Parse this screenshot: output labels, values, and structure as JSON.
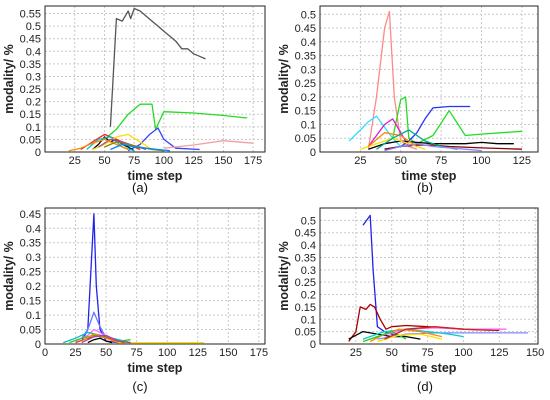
{
  "chart_data": [
    {
      "type": "line",
      "caption": "(a)",
      "xlabel": "time step",
      "ylabel": "modality/ %",
      "xlim": [
        0,
        185
      ],
      "ylim": [
        0,
        0.58
      ],
      "xticks": [
        25,
        50,
        75,
        100,
        125,
        150,
        175
      ],
      "yticks": [
        0,
        0.05,
        0.1,
        0.15,
        0.2,
        0.25,
        0.3,
        0.35,
        0.4,
        0.45,
        0.5,
        0.55
      ],
      "grid": true,
      "series": [
        {
          "color": "#555555",
          "x": [
            55,
            60,
            65,
            70,
            72,
            75,
            80,
            85,
            90,
            95,
            100,
            105,
            110,
            115,
            120,
            125,
            130,
            135
          ],
          "y": [
            0.1,
            0.53,
            0.52,
            0.56,
            0.53,
            0.57,
            0.56,
            0.54,
            0.52,
            0.5,
            0.48,
            0.46,
            0.44,
            0.41,
            0.41,
            0.39,
            0.38,
            0.37
          ]
        },
        {
          "color": "#22dd22",
          "x": [
            50,
            60,
            70,
            80,
            85,
            90,
            93,
            100,
            125,
            150,
            170
          ],
          "y": [
            0.05,
            0.09,
            0.15,
            0.19,
            0.19,
            0.19,
            0.09,
            0.16,
            0.155,
            0.145,
            0.135
          ]
        },
        {
          "color": "#3344ff",
          "x": [
            70,
            80,
            88,
            95,
            100,
            110,
            130
          ],
          "y": [
            0.005,
            0.03,
            0.07,
            0.095,
            0.05,
            0.015,
            0.01
          ]
        },
        {
          "color": "#f4a0a0",
          "x": [
            100,
            125,
            150,
            175
          ],
          "y": [
            0.015,
            0.028,
            0.045,
            0.035
          ]
        },
        {
          "color": "#000000",
          "x": [
            40,
            45,
            50,
            55,
            60,
            65,
            70,
            75
          ],
          "y": [
            0.01,
            0.03,
            0.06,
            0.04,
            0.05,
            0.03,
            0.02,
            0.005
          ]
        },
        {
          "color": "#ff2222",
          "x": [
            30,
            40,
            50,
            60,
            70,
            80
          ],
          "y": [
            0.01,
            0.04,
            0.07,
            0.05,
            0.03,
            0.01
          ]
        },
        {
          "color": "#ffdd00",
          "x": [
            40,
            50,
            60,
            70,
            80,
            90
          ],
          "y": [
            0.01,
            0.03,
            0.06,
            0.07,
            0.04,
            0.01
          ]
        },
        {
          "color": "#00cccc",
          "x": [
            35,
            45,
            55,
            65,
            75
          ],
          "y": [
            0.01,
            0.05,
            0.06,
            0.02,
            0.005
          ]
        },
        {
          "color": "#aa44aa",
          "x": [
            45,
            55,
            65,
            75,
            85
          ],
          "y": [
            0.02,
            0.05,
            0.04,
            0.025,
            0.01
          ]
        },
        {
          "color": "#ff8800",
          "x": [
            20,
            30,
            40,
            50,
            60,
            70
          ],
          "y": [
            0.005,
            0.015,
            0.035,
            0.05,
            0.03,
            0.01
          ]
        },
        {
          "color": "#888800",
          "x": [
            50,
            60,
            70,
            80,
            90,
            100
          ],
          "y": [
            0.02,
            0.04,
            0.03,
            0.02,
            0.01,
            0.005
          ]
        },
        {
          "color": "#0088ff",
          "x": [
            55,
            65,
            75,
            85,
            95,
            105
          ],
          "y": [
            0.01,
            0.03,
            0.02,
            0.015,
            0.01,
            0.005
          ]
        }
      ]
    },
    {
      "type": "line",
      "caption": "(b)",
      "xlabel": "time step",
      "ylabel": "modality/ %",
      "xlim": [
        0,
        135
      ],
      "ylim": [
        0,
        0.53
      ],
      "xticks": [
        25,
        50,
        75,
        100,
        125
      ],
      "yticks": [
        0,
        0.05,
        0.1,
        0.15,
        0.2,
        0.25,
        0.3,
        0.35,
        0.4,
        0.45,
        0.5
      ],
      "grid": true,
      "series": [
        {
          "color": "#ff8888",
          "x": [
            30,
            35,
            40,
            43,
            46,
            50,
            55,
            60
          ],
          "y": [
            0.01,
            0.2,
            0.45,
            0.51,
            0.2,
            0.04,
            0.02,
            0.01
          ]
        },
        {
          "color": "#22dd22",
          "x": [
            45,
            50,
            53,
            55,
            60,
            70,
            80,
            90,
            100,
            125
          ],
          "y": [
            0.05,
            0.19,
            0.2,
            0.05,
            0.03,
            0.06,
            0.15,
            0.06,
            0.065,
            0.075
          ]
        },
        {
          "color": "#2233ff",
          "x": [
            40,
            50,
            55,
            60,
            65,
            70,
            80,
            93
          ],
          "y": [
            0.01,
            0.02,
            0.04,
            0.07,
            0.12,
            0.16,
            0.165,
            0.165
          ]
        },
        {
          "color": "#33ddff",
          "x": [
            18,
            25,
            30,
            35,
            40,
            45,
            50
          ],
          "y": [
            0.04,
            0.08,
            0.11,
            0.13,
            0.09,
            0.05,
            0.02
          ]
        },
        {
          "color": "#cc22cc",
          "x": [
            30,
            35,
            40,
            45,
            50,
            55
          ],
          "y": [
            0.02,
            0.06,
            0.1,
            0.12,
            0.07,
            0.02
          ]
        },
        {
          "color": "#000000",
          "x": [
            30,
            40,
            50,
            60,
            70,
            80,
            90,
            100,
            110,
            120
          ],
          "y": [
            0.01,
            0.03,
            0.04,
            0.035,
            0.03,
            0.03,
            0.03,
            0.035,
            0.03,
            0.03
          ]
        },
        {
          "color": "#8b0000",
          "x": [
            40,
            50,
            60,
            70,
            80,
            100,
            125
          ],
          "y": [
            0.01,
            0.02,
            0.025,
            0.025,
            0.02,
            0.015,
            0.01
          ]
        },
        {
          "color": "#ffdd00",
          "x": [
            25,
            35,
            45,
            55,
            65
          ],
          "y": [
            0.01,
            0.03,
            0.05,
            0.03,
            0.01
          ]
        },
        {
          "color": "#ff8800",
          "x": [
            30,
            40,
            50,
            60
          ],
          "y": [
            0.02,
            0.07,
            0.06,
            0.02
          ]
        },
        {
          "color": "#00aa88",
          "x": [
            35,
            45,
            55,
            65,
            75,
            85
          ],
          "y": [
            0.01,
            0.05,
            0.08,
            0.04,
            0.02,
            0.01
          ]
        },
        {
          "color": "#8888ff",
          "x": [
            40,
            50,
            60,
            70,
            80,
            90,
            100
          ],
          "y": [
            0.005,
            0.02,
            0.03,
            0.02,
            0.015,
            0.01,
            0.005
          ]
        }
      ]
    },
    {
      "type": "line",
      "caption": "(c)",
      "xlabel": "time step",
      "ylabel": "modality/ %",
      "xlim": [
        0,
        180
      ],
      "ylim": [
        0,
        0.47
      ],
      "xticks": [
        0,
        25,
        50,
        75,
        100,
        125,
        150,
        175
      ],
      "yticks": [
        0,
        0.05,
        0.1,
        0.15,
        0.2,
        0.25,
        0.3,
        0.35,
        0.4,
        0.45
      ],
      "grid": true,
      "series": [
        {
          "color": "#2222ee",
          "x": [
            30,
            35,
            40,
            42,
            45,
            50,
            60
          ],
          "y": [
            0.01,
            0.05,
            0.45,
            0.2,
            0.05,
            0.01,
            0.005
          ]
        },
        {
          "color": "#6677ff",
          "x": [
            30,
            35,
            40,
            45,
            50
          ],
          "y": [
            0.02,
            0.05,
            0.11,
            0.06,
            0.02
          ]
        },
        {
          "color": "#ff66ff",
          "x": [
            25,
            35,
            40,
            45,
            55
          ],
          "y": [
            0.01,
            0.03,
            0.05,
            0.04,
            0.01
          ]
        },
        {
          "color": "#00bbbb",
          "x": [
            15,
            25,
            35,
            45,
            55,
            70
          ],
          "y": [
            0.005,
            0.02,
            0.04,
            0.03,
            0.02,
            0.005
          ]
        },
        {
          "color": "#22cc22",
          "x": [
            20,
            30,
            40,
            50,
            60,
            70
          ],
          "y": [
            0.005,
            0.02,
            0.03,
            0.02,
            0.01,
            0.015
          ]
        },
        {
          "color": "#ffdd00",
          "x": [
            60,
            80,
            100,
            120,
            130
          ],
          "y": [
            0.005,
            0.005,
            0.005,
            0.005,
            0.005
          ]
        },
        {
          "color": "#ff2222",
          "x": [
            25,
            35,
            45,
            55,
            65
          ],
          "y": [
            0.005,
            0.02,
            0.03,
            0.015,
            0.005
          ]
        },
        {
          "color": "#ff8800",
          "x": [
            30,
            40,
            50,
            60
          ],
          "y": [
            0.01,
            0.035,
            0.02,
            0.005
          ]
        },
        {
          "color": "#000000",
          "x": [
            35,
            40,
            45,
            50,
            55
          ],
          "y": [
            0.005,
            0.015,
            0.02,
            0.01,
            0.005
          ]
        },
        {
          "color": "#aa44aa",
          "x": [
            30,
            40,
            50,
            60,
            70
          ],
          "y": [
            0.005,
            0.025,
            0.03,
            0.01,
            0.005
          ]
        }
      ]
    },
    {
      "type": "line",
      "caption": "(d)",
      "xlabel": "time step",
      "ylabel": "modality/ %",
      "xlim": [
        0,
        152
      ],
      "ylim": [
        0,
        0.55
      ],
      "xticks": [
        25,
        50,
        75,
        100,
        125,
        150
      ],
      "yticks": [
        0,
        0.05,
        0.1,
        0.15,
        0.2,
        0.25,
        0.3,
        0.35,
        0.4,
        0.45,
        0.5
      ],
      "grid": true,
      "series": [
        {
          "color": "#2222ee",
          "x": [
            30,
            35,
            37,
            40,
            45,
            50,
            60
          ],
          "y": [
            0.48,
            0.52,
            0.3,
            0.07,
            0.05,
            0.04,
            0.03
          ]
        },
        {
          "color": "#aa0000",
          "x": [
            20,
            25,
            28,
            32,
            35,
            38,
            42,
            46,
            50,
            60,
            75,
            100,
            125
          ],
          "y": [
            0.01,
            0.05,
            0.15,
            0.14,
            0.16,
            0.15,
            0.1,
            0.06,
            0.07,
            0.075,
            0.07,
            0.06,
            0.055
          ]
        },
        {
          "color": "#000000",
          "x": [
            20,
            30,
            40,
            50,
            60,
            70
          ],
          "y": [
            0.02,
            0.05,
            0.04,
            0.03,
            0.03,
            0.02
          ]
        },
        {
          "color": "#ff66ff",
          "x": [
            40,
            60,
            80,
            100,
            130
          ],
          "y": [
            0.03,
            0.06,
            0.065,
            0.06,
            0.06
          ]
        },
        {
          "color": "#8888ff",
          "x": [
            40,
            60,
            80,
            100,
            120,
            145
          ],
          "y": [
            0.02,
            0.04,
            0.045,
            0.045,
            0.045,
            0.045
          ]
        },
        {
          "color": "#00cccc",
          "x": [
            30,
            45,
            60,
            75,
            90,
            100
          ],
          "y": [
            0.02,
            0.05,
            0.06,
            0.05,
            0.04,
            0.03
          ]
        },
        {
          "color": "#ff8800",
          "x": [
            35,
            45,
            55,
            70,
            85
          ],
          "y": [
            0.01,
            0.04,
            0.06,
            0.05,
            0.03
          ]
        },
        {
          "color": "#22cc22",
          "x": [
            30,
            40,
            50,
            60
          ],
          "y": [
            0.01,
            0.03,
            0.05,
            0.02
          ]
        },
        {
          "color": "#ffdd00",
          "x": [
            40,
            55,
            70,
            85
          ],
          "y": [
            0.01,
            0.035,
            0.04,
            0.02
          ]
        },
        {
          "color": "#cc2222",
          "x": [
            45,
            60,
            80,
            100,
            120
          ],
          "y": [
            0.02,
            0.06,
            0.07,
            0.06,
            0.055
          ]
        }
      ]
    }
  ]
}
